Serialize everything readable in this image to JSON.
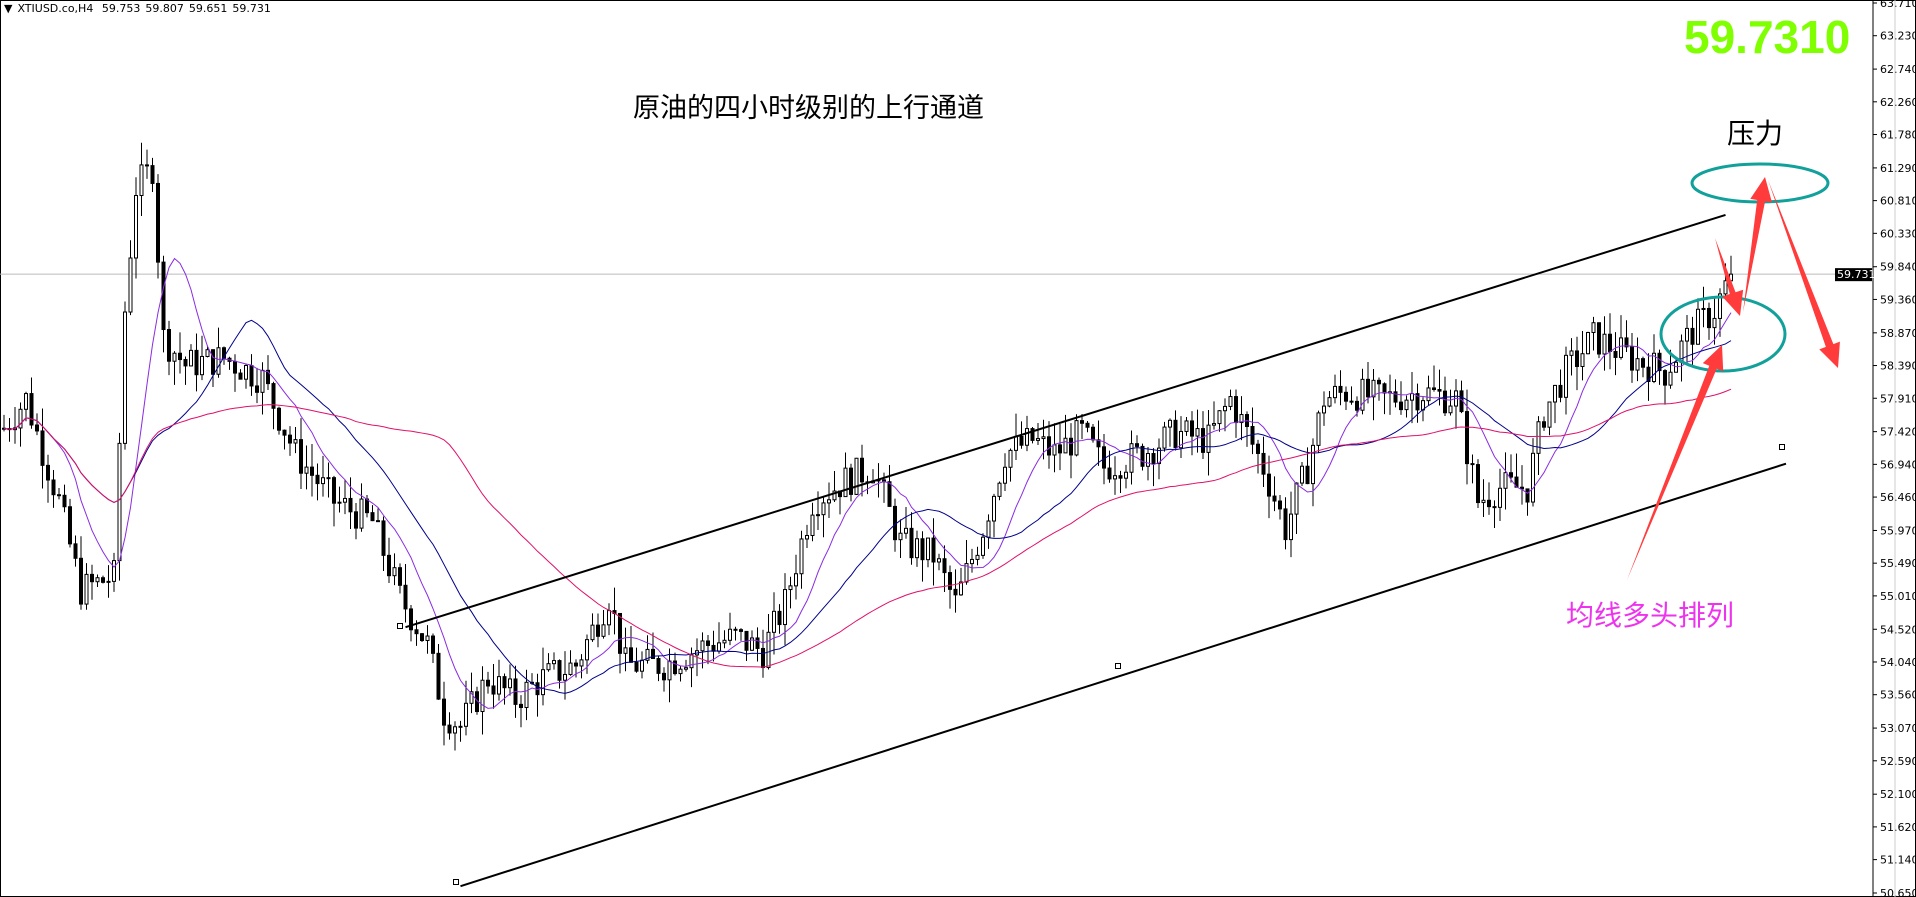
{
  "header": {
    "symbol": "XTIUSD.co,H4",
    "open": "59.753",
    "high": "59.807",
    "low": "59.651",
    "close": "59.731"
  },
  "big_price": "59.7310",
  "annotations": {
    "title": "原油的四小时级别的上行通道",
    "resistance": "压力",
    "ma_note": "均线多头排列"
  },
  "colors": {
    "big_price": "#7fff00",
    "ellipse": "#11a09a",
    "arrow": "#ff3b3b",
    "ma_note": "#ee33ee",
    "ma_fast": "#8a2be2",
    "ma_mid": "#00008b",
    "ma_slow": "#e0106a"
  },
  "chart_data": {
    "type": "candlestick",
    "timeframe": "H4",
    "ylim": [
      50.65,
      63.71
    ],
    "y_ticks": [
      "63.710",
      "63.230",
      "62.740",
      "62.260",
      "61.780",
      "61.290",
      "60.810",
      "60.330",
      "59.840",
      "59.360",
      "58.870",
      "58.390",
      "57.910",
      "57.420",
      "56.940",
      "56.460",
      "55.970",
      "55.490",
      "55.010",
      "54.520",
      "54.040",
      "53.560",
      "53.070",
      "52.590",
      "52.100",
      "51.620",
      "51.140",
      "50.650"
    ],
    "current_price": "59.731",
    "approx_close_path": [
      [
        0,
        57.47
      ],
      [
        4,
        57.9
      ],
      [
        10,
        56.4
      ],
      [
        14,
        55.1
      ],
      [
        20,
        55.3
      ],
      [
        22,
        59.2
      ],
      [
        24,
        61.0
      ],
      [
        27,
        61.3
      ],
      [
        29,
        58.8
      ],
      [
        33,
        58.4
      ],
      [
        40,
        58.5
      ],
      [
        47,
        58.2
      ],
      [
        53,
        57.1
      ],
      [
        60,
        56.4
      ],
      [
        67,
        56.1
      ],
      [
        72,
        55.0
      ],
      [
        77,
        54.3
      ],
      [
        80,
        53.3
      ],
      [
        83,
        53.1
      ],
      [
        88,
        53.8
      ],
      [
        93,
        53.5
      ],
      [
        98,
        53.8
      ],
      [
        104,
        54.0
      ],
      [
        110,
        55.0
      ],
      [
        113,
        54.0
      ],
      [
        120,
        54.0
      ],
      [
        128,
        54.3
      ],
      [
        133,
        54.4
      ],
      [
        138,
        54.2
      ],
      [
        142,
        54.9
      ],
      [
        147,
        56.4
      ],
      [
        153,
        56.7
      ],
      [
        158,
        56.9
      ],
      [
        163,
        55.8
      ],
      [
        169,
        55.6
      ],
      [
        173,
        54.9
      ],
      [
        178,
        56.0
      ],
      [
        182,
        57.1
      ],
      [
        187,
        57.3
      ],
      [
        191,
        57.1
      ],
      [
        196,
        57.4
      ],
      [
        200,
        56.9
      ],
      [
        207,
        57.1
      ],
      [
        213,
        57.4
      ],
      [
        219,
        57.3
      ],
      [
        223,
        57.9
      ],
      [
        229,
        56.9
      ],
      [
        233,
        56.0
      ],
      [
        237,
        56.9
      ],
      [
        240,
        57.9
      ],
      [
        244,
        58.0
      ],
      [
        251,
        57.9
      ],
      [
        258,
        58.0
      ],
      [
        264,
        57.9
      ],
      [
        268,
        56.4
      ],
      [
        272,
        56.6
      ],
      [
        277,
        56.6
      ],
      [
        280,
        57.7
      ],
      [
        284,
        58.3
      ],
      [
        289,
        58.8
      ],
      [
        296,
        58.5
      ],
      [
        302,
        58.3
      ],
      [
        307,
        58.9
      ],
      [
        311,
        59.2
      ],
      [
        314,
        59.73
      ]
    ],
    "moving_averages": [
      "fast",
      "mid",
      "slow"
    ],
    "channel": {
      "upper": [
        [
          73,
          54.55
        ],
        [
          313,
          60.6
        ]
      ],
      "lower": [
        [
          83,
          50.75
        ],
        [
          324,
          56.95
        ]
      ]
    }
  }
}
